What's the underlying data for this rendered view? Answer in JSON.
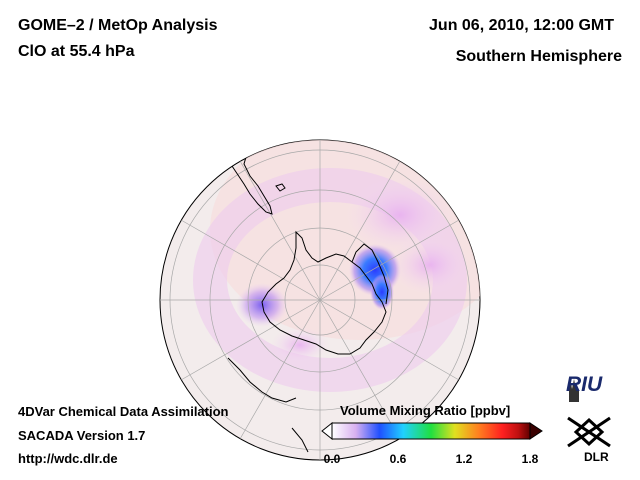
{
  "header": {
    "title_line1": "GOME–2 / MetOp Analysis",
    "title_line2": "ClO at 55.4 hPa",
    "datetime": "Jun 06, 2010, 12:00 GMT",
    "hemisphere": "Southern Hemisphere"
  },
  "footer": {
    "line1": "4DVar Chemical Data Assimilation",
    "line2": "SACADA Version 1.7",
    "url": "http://wdc.dlr.de"
  },
  "colorbar": {
    "title": "Volume Mixing Ratio [ppbv]",
    "ticks": [
      "0.0",
      "0.6",
      "1.2",
      "1.8"
    ],
    "min": 0.0,
    "max": 1.8,
    "colors": [
      "#ffffff",
      "#c8a0f0",
      "#2050ff",
      "#20d0ff",
      "#20e040",
      "#e0e020",
      "#ff8020",
      "#ff2020",
      "#c01010",
      "#600000"
    ]
  },
  "logos": {
    "riu": "RIU",
    "dlr": "DLR"
  },
  "map": {
    "ocean_color": "#f3ecec",
    "background_tint": "#f6dede",
    "land_outline": "#000000",
    "grid_color": "#a0a0a0"
  }
}
